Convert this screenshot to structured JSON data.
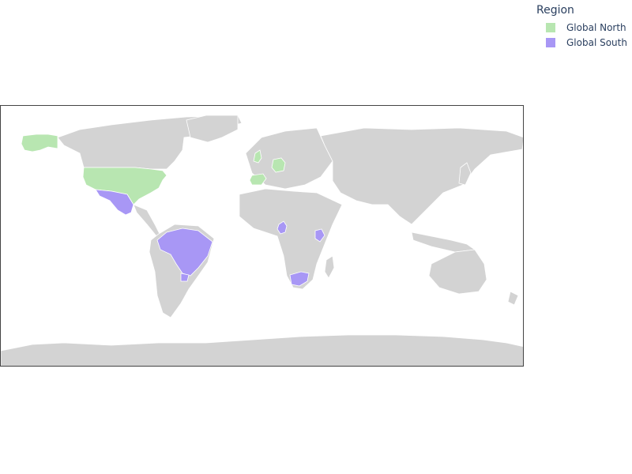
{
  "legend": {
    "title": "Region",
    "items": [
      {
        "label": "Global North",
        "color": "#b8e6b1"
      },
      {
        "label": "Global South",
        "color": "#a897f5"
      }
    ]
  },
  "map": {
    "land_color": "#d3d3d3",
    "border_color": "#ffffff",
    "highlighted": [
      {
        "country": "United States",
        "region": "Global North"
      },
      {
        "country": "United Kingdom",
        "region": "Global North"
      },
      {
        "country": "Germany",
        "region": "Global North"
      },
      {
        "country": "Spain",
        "region": "Global North"
      },
      {
        "country": "Mexico",
        "region": "Global South"
      },
      {
        "country": "Brazil",
        "region": "Global South"
      },
      {
        "country": "Uruguay",
        "region": "Global South"
      },
      {
        "country": "Cameroon",
        "region": "Global South"
      },
      {
        "country": "Kenya",
        "region": "Global South"
      },
      {
        "country": "South Africa",
        "region": "Global South"
      }
    ]
  }
}
